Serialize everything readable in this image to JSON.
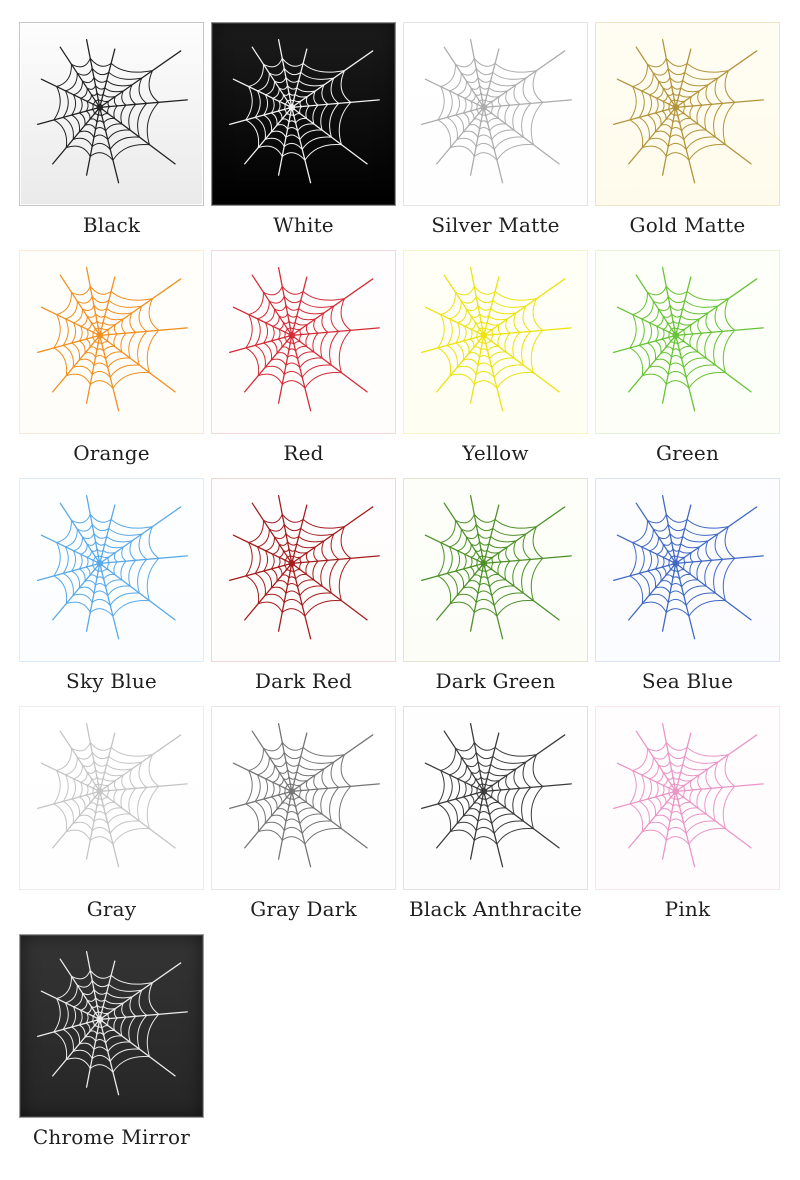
{
  "page": {
    "background": "#ffffff",
    "text_color": "#1f1f1f",
    "icon_name": "spider-web-icon"
  },
  "tiles": [
    {
      "label": "Black",
      "web_color": "#212121",
      "border_color": "#c7c7c7",
      "bg_top": "#fdfdfd",
      "bg_bottom": "#eaeaea",
      "dark": false,
      "light_grad": true
    },
    {
      "label": "White",
      "web_color": "#f2f2f2",
      "border_color": "#8f8f8f",
      "bg_top": "#1c1c1c",
      "bg_bottom": "#000000",
      "dark": true,
      "light_grad": false
    },
    {
      "label": "Silver Matte",
      "web_color": "#acacac",
      "border_color": "#e4e4e4",
      "bg_top": "#ffffff",
      "bg_bottom": "#fefefe",
      "dark": false,
      "light_grad": false
    },
    {
      "label": "Gold Matte",
      "web_color": "#b2933a",
      "border_color": "#ede4c6",
      "bg_top": "#fffdf3",
      "bg_bottom": "#fffbec",
      "dark": false,
      "light_grad": false
    },
    {
      "label": "Orange",
      "web_color": "#f08e1e",
      "border_color": "#fbe9d3",
      "bg_top": "#fffefb",
      "bg_bottom": "#fffdf9",
      "dark": false,
      "light_grad": false
    },
    {
      "label": "Red",
      "web_color": "#d32b36",
      "border_color": "#f4d8db",
      "bg_top": "#fffdfd",
      "bg_bottom": "#fffcfc",
      "dark": false,
      "light_grad": false
    },
    {
      "label": "Yellow",
      "web_color": "#ece20e",
      "border_color": "#f6f3c8",
      "bg_top": "#fffff8",
      "bg_bottom": "#fffef2",
      "dark": false,
      "light_grad": false
    },
    {
      "label": "Green",
      "web_color": "#66c235",
      "border_color": "#e6f2d5",
      "bg_top": "#fdfff9",
      "bg_bottom": "#fcfef7",
      "dark": false,
      "light_grad": false
    },
    {
      "label": "Sky Blue",
      "web_color": "#58a8e8",
      "border_color": "#dcecf8",
      "bg_top": "#fdfeff",
      "bg_bottom": "#fbfdff",
      "dark": false,
      "light_grad": false
    },
    {
      "label": "Dark Red",
      "web_color": "#a31b1b",
      "border_color": "#efd7d7",
      "bg_top": "#fffdfd",
      "bg_bottom": "#fffcfc",
      "dark": false,
      "light_grad": false
    },
    {
      "label": "Dark Green",
      "web_color": "#4b9027",
      "border_color": "#e0e5d2",
      "bg_top": "#fdfef9",
      "bg_bottom": "#fcfdf7",
      "dark": false,
      "light_grad": false
    },
    {
      "label": "Sea Blue",
      "web_color": "#3f68c2",
      "border_color": "#dae3f3",
      "bg_top": "#fdfdff",
      "bg_bottom": "#fbfcff",
      "dark": false,
      "light_grad": false
    },
    {
      "label": "Gray",
      "web_color": "#c4c4c4",
      "border_color": "#ececec",
      "bg_top": "#ffffff",
      "bg_bottom": "#fefefe",
      "dark": false,
      "light_grad": false
    },
    {
      "label": "Gray Dark",
      "web_color": "#757575",
      "border_color": "#e7e7e7",
      "bg_top": "#ffffff",
      "bg_bottom": "#fefefe",
      "dark": false,
      "light_grad": false
    },
    {
      "label": "Black Anthracite",
      "web_color": "#3a3a3a",
      "border_color": "#e1e1e1",
      "bg_top": "#fefefe",
      "bg_bottom": "#fdfdfd",
      "dark": false,
      "light_grad": false
    },
    {
      "label": "Pink",
      "web_color": "#e995c5",
      "border_color": "#f8e4ef",
      "bg_top": "#fffdfe",
      "bg_bottom": "#fffcfe",
      "dark": false,
      "light_grad": false
    },
    {
      "label": "Chrome Mirror",
      "web_color": "#ececec",
      "border_color": "#9c9c9c",
      "bg_top": "#343434",
      "bg_bottom": "#262626",
      "dark": true,
      "light_grad": false
    }
  ]
}
